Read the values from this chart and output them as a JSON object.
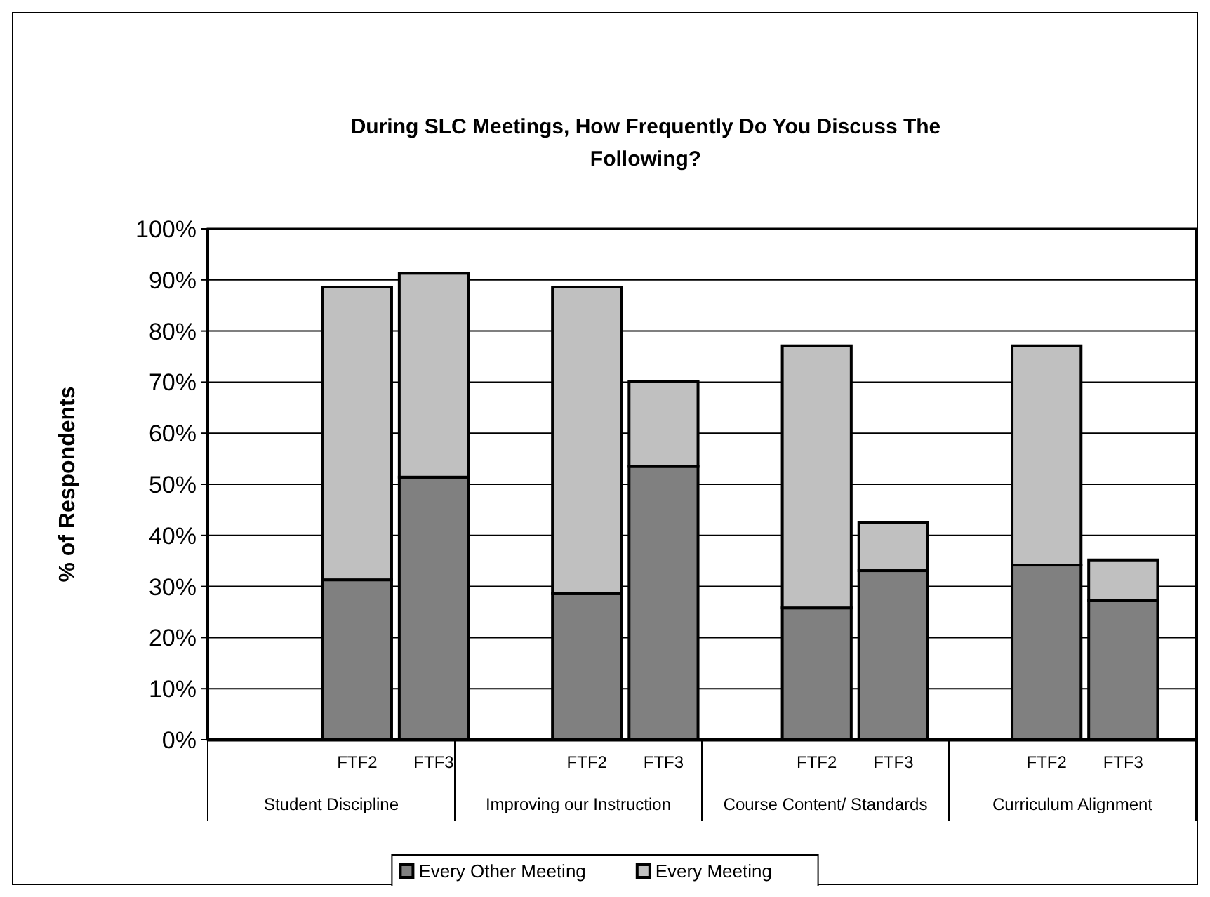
{
  "chart_data": {
    "type": "bar",
    "title": "During SLC Meetings, How Frequently Do You Discuss The Following?",
    "ylabel": "% of Respondents",
    "categories": [
      null,
      "FTF2",
      "FTF3",
      null,
      "FTF2",
      "FTF3",
      null,
      "FTF2",
      "FTF3",
      null,
      "FTF2",
      "FTF3"
    ],
    "annotations": [
      "Student Discipline",
      "Improving our Instruction",
      "Course Content/ Standards",
      "Curriculum Alignment"
    ],
    "stacked": true,
    "series": [
      {
        "name": "Every Other Meeting",
        "color": "#808080",
        "values": [
          null,
          31.3,
          51.4,
          null,
          28.6,
          53.5,
          null,
          25.8,
          33.1,
          null,
          34.2,
          27.3
        ]
      },
      {
        "name": "Every Meeting",
        "color": "#c0c0c0",
        "values": [
          null,
          57.3,
          39.9,
          null,
          60.0,
          16.6,
          null,
          51.3,
          9.4,
          null,
          42.9,
          7.9
        ]
      }
    ],
    "ylim": [
      0,
      100
    ],
    "yticks": [
      {
        "value": 0,
        "label": "0%"
      },
      {
        "value": 10,
        "label": "10%"
      },
      {
        "value": 20,
        "label": "20%"
      },
      {
        "value": 30,
        "label": "30%"
      },
      {
        "value": 40,
        "label": "40%"
      },
      {
        "value": 50,
        "label": "50%"
      },
      {
        "value": 60,
        "label": "60%"
      },
      {
        "value": 70,
        "label": "70%"
      },
      {
        "value": 80,
        "label": "80%"
      },
      {
        "value": 90,
        "label": "90%"
      },
      {
        "value": 100,
        "label": "100%"
      }
    ],
    "grid": "y",
    "legend": "bottom"
  }
}
